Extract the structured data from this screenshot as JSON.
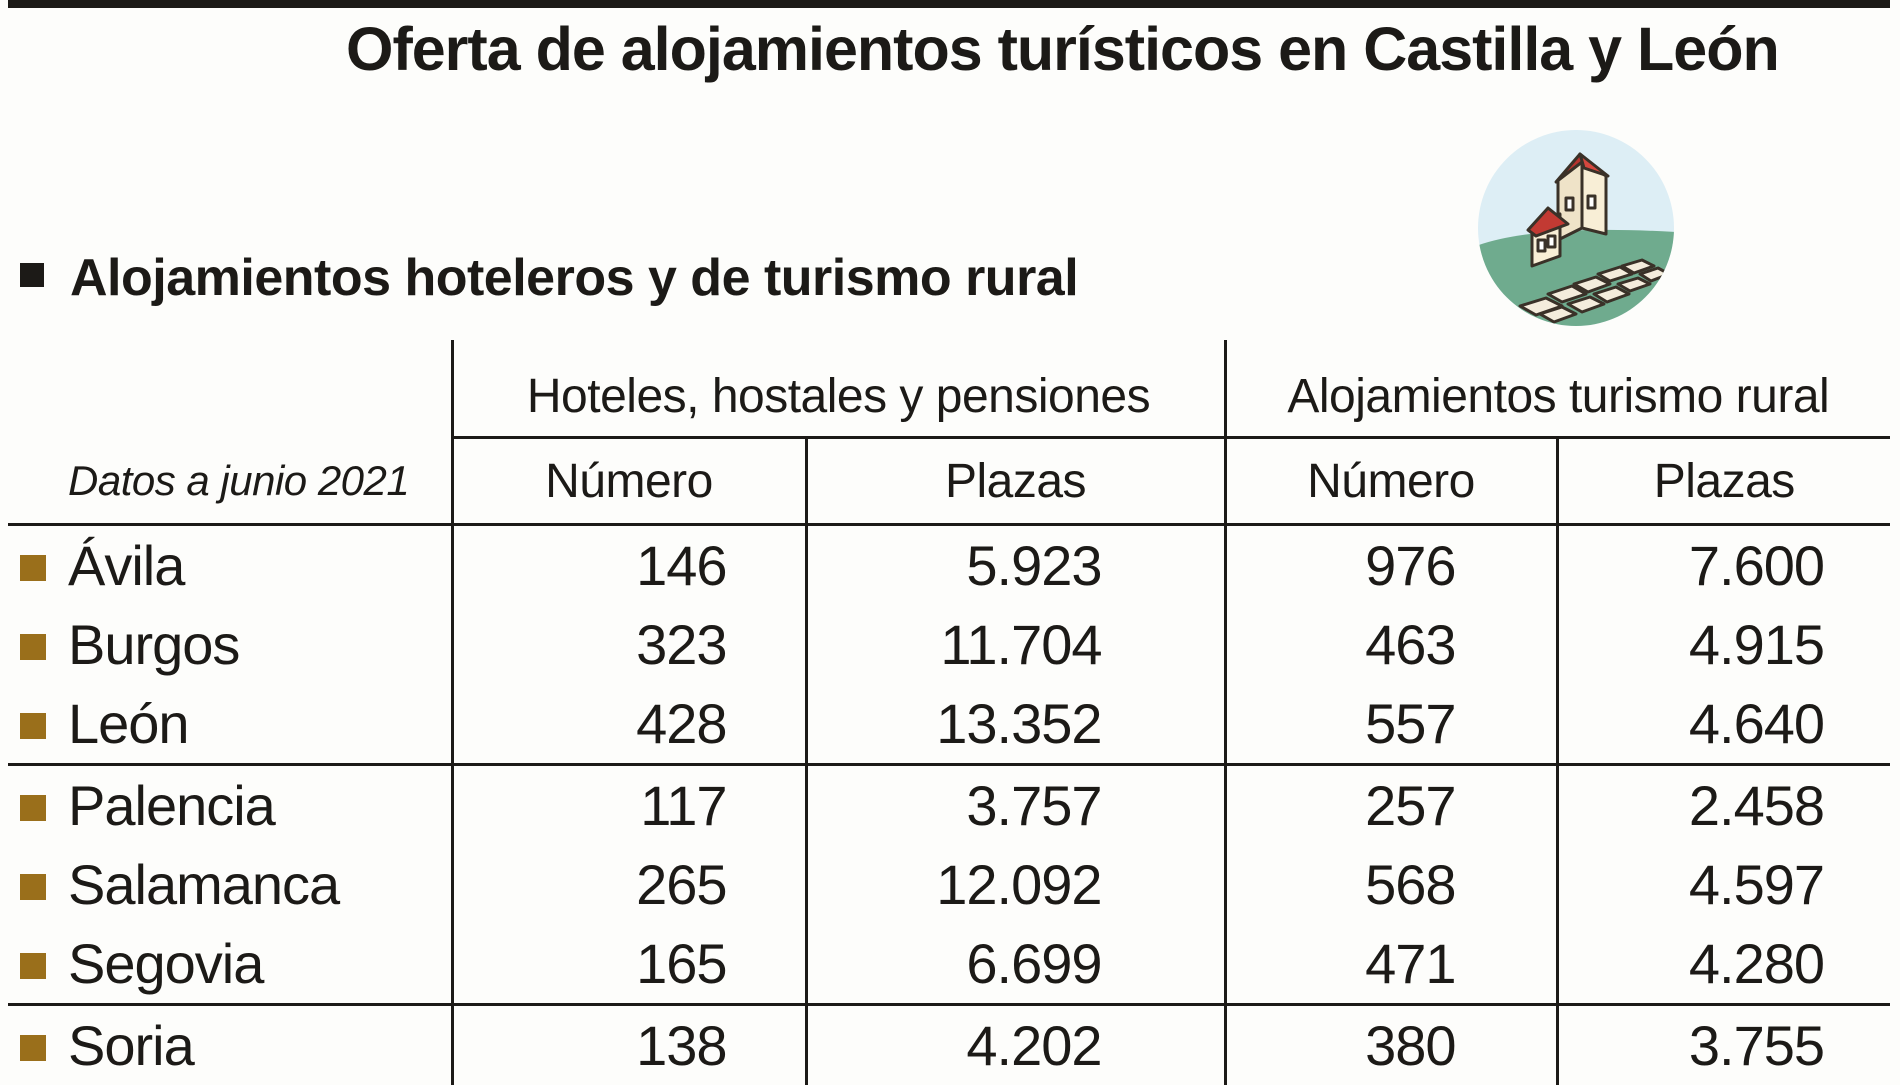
{
  "title": "Oferta de alojamientos turísticos en Castilla y León",
  "section_title": "Alojamientos hoteleros y de turismo rural",
  "note": "Datos a junio 2021",
  "column_groups": [
    "Hoteles, hostales y pensiones",
    "Alojamientos turismo rural"
  ],
  "subheaders": [
    "Número",
    "Plazas",
    "Número",
    "Plazas"
  ],
  "rows": [
    {
      "provincia": "Ávila",
      "hoteles_numero": "146",
      "hoteles_plazas": "5.923",
      "rural_numero": "976",
      "rural_plazas": "7.600"
    },
    {
      "provincia": "Burgos",
      "hoteles_numero": "323",
      "hoteles_plazas": "11.704",
      "rural_numero": "463",
      "rural_plazas": "4.915"
    },
    {
      "provincia": "León",
      "hoteles_numero": "428",
      "hoteles_plazas": "13.352",
      "rural_numero": "557",
      "rural_plazas": "4.640"
    },
    {
      "provincia": "Palencia",
      "hoteles_numero": "117",
      "hoteles_plazas": "3.757",
      "rural_numero": "257",
      "rural_plazas": "2.458"
    },
    {
      "provincia": "Salamanca",
      "hoteles_numero": "265",
      "hoteles_plazas": "12.092",
      "rural_numero": "568",
      "rural_plazas": "4.597"
    },
    {
      "provincia": "Segovia",
      "hoteles_numero": "165",
      "hoteles_plazas": "6.699",
      "rural_numero": "471",
      "rural_plazas": "4.280"
    },
    {
      "provincia": "Soria",
      "hoteles_numero": "138",
      "hoteles_plazas": "4.202",
      "rural_numero": "380",
      "rural_plazas": "3.755"
    }
  ],
  "colors": {
    "row_marker": "#9a6f1b",
    "text": "#1c1a17"
  },
  "icons": {
    "illustration": "rural-village-icon",
    "section_marker": "square-bullet-icon"
  }
}
